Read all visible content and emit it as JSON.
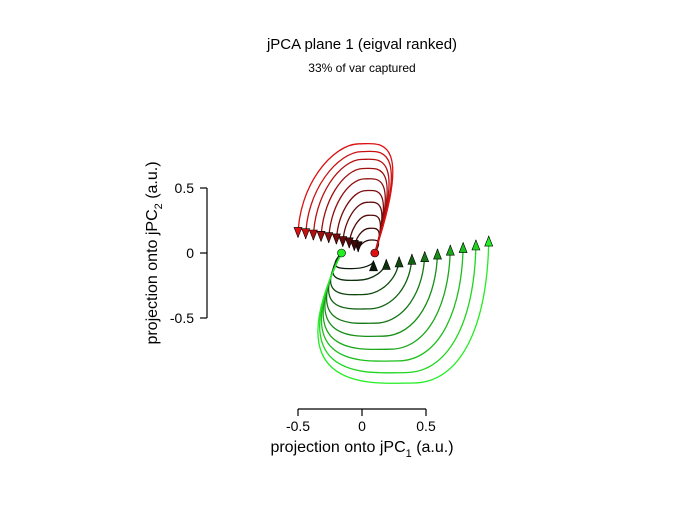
{
  "chart_data": {
    "type": "line",
    "title": "jPCA plane 1 (eigval ranked)",
    "subtitle": "33% of var captured",
    "xlabel_main": "projection onto jPC",
    "xlabel_sub": "1",
    "xlabel_unit": " (a.u.)",
    "ylabel_main": "projection onto jPC",
    "ylabel_sub": "2",
    "ylabel_unit": " (a.u.)",
    "xlim": [
      -0.5,
      0.5
    ],
    "ylim": [
      -0.5,
      0.5
    ],
    "x_ticks": [
      {
        "value": -0.5,
        "label": "-0.5"
      },
      {
        "value": 0,
        "label": "0"
      },
      {
        "value": 0.5,
        "label": "0.5"
      }
    ],
    "y_ticks": [
      {
        "value": 0.5,
        "label": "0.5"
      },
      {
        "value": 0,
        "label": "0"
      },
      {
        "value": -0.5,
        "label": "-0.5"
      }
    ],
    "trajectory_groups": [
      {
        "color_start": "#2a0808",
        "color_end": "#dd1111",
        "start_center": [
          0.1,
          0.0
        ],
        "end_points": [
          [
            -0.5,
            0.12
          ],
          [
            -0.44,
            0.11
          ],
          [
            -0.38,
            0.1
          ],
          [
            -0.32,
            0.09
          ],
          [
            -0.26,
            0.08
          ],
          [
            -0.2,
            0.07
          ],
          [
            -0.15,
            0.05
          ],
          [
            -0.1,
            0.04
          ],
          [
            -0.06,
            0.02
          ],
          [
            -0.03,
            0.01
          ]
        ],
        "apex_points": [
          [
            -0.02,
            0.84
          ],
          [
            -0.0,
            0.78
          ],
          [
            0.0,
            0.72
          ],
          [
            0.01,
            0.65
          ],
          [
            0.02,
            0.57
          ],
          [
            0.03,
            0.48
          ],
          [
            0.04,
            0.39
          ],
          [
            0.05,
            0.29
          ],
          [
            0.06,
            0.19
          ],
          [
            0.07,
            0.1
          ]
        ]
      },
      {
        "color_start": "#0a1a0a",
        "color_end": "#22ee22",
        "start_center": [
          -0.16,
          0.0
        ],
        "end_points": [
          [
            0.99,
            0.13
          ],
          [
            0.89,
            0.1
          ],
          [
            0.79,
            0.08
          ],
          [
            0.69,
            0.06
          ],
          [
            0.59,
            0.03
          ],
          [
            0.49,
            0.01
          ],
          [
            0.39,
            -0.01
          ],
          [
            0.29,
            -0.03
          ],
          [
            0.19,
            -0.05
          ],
          [
            0.09,
            -0.06
          ]
        ],
        "apex_points": [
          [
            0.4,
            -1.0
          ],
          [
            0.34,
            -0.92
          ],
          [
            0.28,
            -0.83
          ],
          [
            0.22,
            -0.74
          ],
          [
            0.16,
            -0.64
          ],
          [
            0.1,
            -0.54
          ],
          [
            0.05,
            -0.43
          ],
          [
            0.0,
            -0.32
          ],
          [
            -0.04,
            -0.21
          ],
          [
            -0.08,
            -0.12
          ]
        ]
      }
    ],
    "grid": false,
    "legend": "none"
  }
}
